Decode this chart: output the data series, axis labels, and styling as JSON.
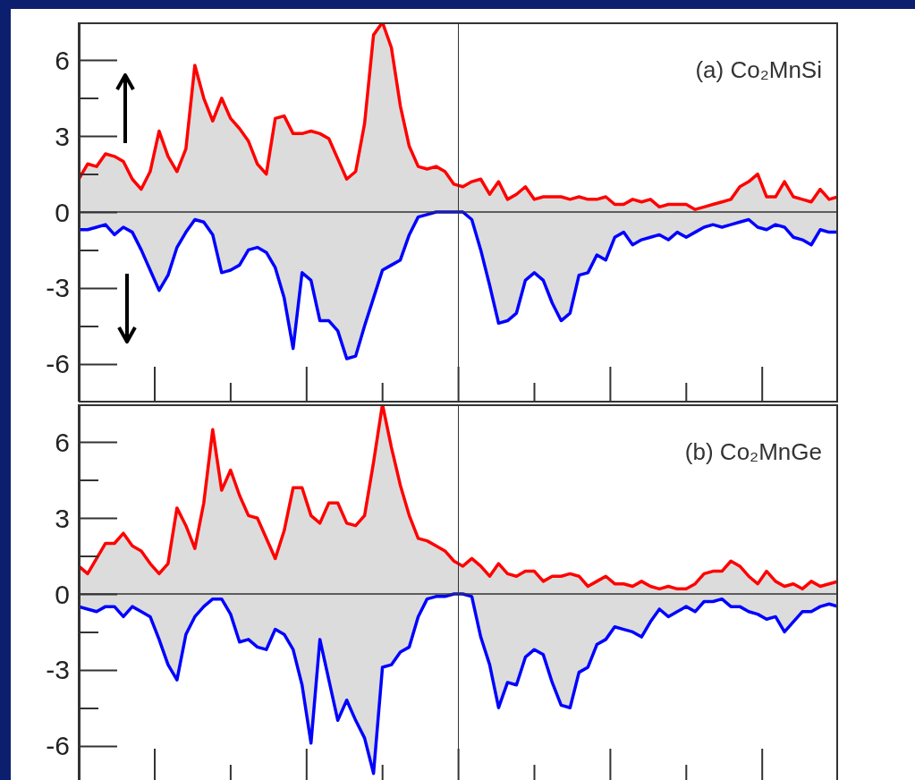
{
  "chart_data": [
    {
      "type": "area",
      "title": "(a) Co₂MnSi",
      "tick_labels": "y",
      "grid": false,
      "categories": [
        null,
        null,
        null,
        null,
        null,
        null,
        null,
        null,
        null,
        null,
        null,
        null,
        null,
        null,
        null,
        null,
        null,
        null,
        null,
        null,
        null,
        null,
        null,
        null,
        null,
        null,
        null,
        null,
        null,
        null,
        null,
        null,
        null,
        null,
        null,
        null,
        null,
        null,
        null,
        null,
        null,
        null,
        null,
        null,
        null,
        null,
        null,
        null,
        null,
        null,
        null,
        null,
        null,
        null,
        null,
        null,
        null,
        null,
        null,
        null,
        null,
        null,
        null,
        null,
        null,
        null,
        null,
        null,
        null,
        null,
        null,
        null,
        null,
        null,
        null,
        null,
        null,
        null,
        null,
        null,
        null,
        null,
        null,
        null,
        null,
        null
      ],
      "series": [
        {
          "color": "#ff0000",
          "values": [
            1.3,
            1.9,
            1.8,
            2.3,
            2.2,
            2.0,
            1.3,
            0.9,
            1.6,
            3.2,
            2.2,
            1.6,
            2.5,
            5.8,
            4.5,
            3.6,
            4.5,
            3.7,
            3.3,
            2.8,
            1.9,
            1.5,
            3.7,
            3.8,
            3.1,
            3.1,
            3.2,
            3.1,
            2.9,
            2.1,
            1.3,
            1.6,
            3.5,
            7.0,
            7.5,
            6.5,
            4.2,
            2.6,
            1.8,
            1.7,
            1.8,
            1.6,
            1.1,
            1.0,
            1.2,
            1.3,
            0.7,
            1.2,
            0.5,
            0.7,
            1.0,
            0.5,
            0.6,
            0.6,
            0.6,
            0.5,
            0.6,
            0.5,
            0.5,
            0.6,
            0.3,
            0.3,
            0.5,
            0.4,
            0.5,
            0.2,
            0.3,
            0.3,
            0.3,
            0.1,
            0.2,
            0.3,
            0.4,
            0.5,
            1.0,
            1.2,
            1.5,
            0.6,
            0.6,
            1.2,
            0.6,
            0.5,
            0.4,
            0.9,
            0.5,
            0.6
          ]
        },
        {
          "color": "#0000ff",
          "values": [
            -0.7,
            -0.7,
            -0.6,
            -0.5,
            -0.9,
            -0.6,
            -0.8,
            -1.5,
            -2.3,
            -3.1,
            -2.5,
            -1.4,
            -0.8,
            -0.3,
            -0.4,
            -0.9,
            -2.4,
            -2.3,
            -2.1,
            -1.5,
            -1.4,
            -1.6,
            -2.2,
            -3.4,
            -5.4,
            -2.4,
            -2.7,
            -4.3,
            -4.3,
            -4.7,
            -5.8,
            -5.7,
            -4.5,
            -3.4,
            -2.3,
            -2.1,
            -1.9,
            -0.9,
            -0.2,
            -0.1,
            0,
            0,
            0,
            0,
            -0.3,
            -1.5,
            -2.9,
            -4.4,
            -4.3,
            -4.0,
            -2.7,
            -2.4,
            -2.7,
            -3.6,
            -4.3,
            -4.0,
            -2.5,
            -2.4,
            -1.7,
            -1.9,
            -1.0,
            -0.8,
            -1.3,
            -1.1,
            -1.0,
            -0.9,
            -1.1,
            -0.8,
            -1.0,
            -0.8,
            -0.6,
            -0.5,
            -0.6,
            -0.5,
            -0.4,
            -0.3,
            -0.6,
            -0.7,
            -0.5,
            -0.6,
            -1.0,
            -1.1,
            -1.3,
            -0.7,
            -0.8,
            -0.8
          ]
        }
      ],
      "ylim": [
        -7.5,
        7.5
      ],
      "yticks": [
        -6,
        -3,
        0,
        3,
        6
      ],
      "ref_lines": [
        {
          "axis": "y",
          "value": 0
        }
      ]
    },
    {
      "type": "area",
      "title": "(b) Co₂MnGe",
      "tick_labels": "y",
      "grid": false,
      "categories": [
        null,
        null,
        null,
        null,
        null,
        null,
        null,
        null,
        null,
        null,
        null,
        null,
        null,
        null,
        null,
        null,
        null,
        null,
        null,
        null,
        null,
        null,
        null,
        null,
        null,
        null,
        null,
        null,
        null,
        null,
        null,
        null,
        null,
        null,
        null,
        null,
        null,
        null,
        null,
        null,
        null,
        null,
        null,
        null,
        null,
        null,
        null,
        null,
        null,
        null,
        null,
        null,
        null,
        null,
        null,
        null,
        null,
        null,
        null,
        null,
        null,
        null,
        null,
        null,
        null,
        null,
        null,
        null,
        null,
        null,
        null,
        null,
        null,
        null,
        null,
        null,
        null,
        null,
        null,
        null,
        null,
        null,
        null,
        null,
        null,
        null
      ],
      "series": [
        {
          "color": "#ff0000",
          "values": [
            1.1,
            0.8,
            1.4,
            2.0,
            2.0,
            2.4,
            1.9,
            1.7,
            1.2,
            0.8,
            1.2,
            3.4,
            2.7,
            1.8,
            3.6,
            6.5,
            4.1,
            4.9,
            3.9,
            3.1,
            3.0,
            2.2,
            1.4,
            2.5,
            4.2,
            4.2,
            3.1,
            2.8,
            3.6,
            3.6,
            2.8,
            2.7,
            3.1,
            5.2,
            7.5,
            5.8,
            4.3,
            3.1,
            2.2,
            2.1,
            1.9,
            1.7,
            1.3,
            1.1,
            1.4,
            1.1,
            0.7,
            1.2,
            0.8,
            0.7,
            0.9,
            0.9,
            0.5,
            0.7,
            0.7,
            0.8,
            0.7,
            0.3,
            0.5,
            0.7,
            0.4,
            0.4,
            0.3,
            0.5,
            0.3,
            0.2,
            0.3,
            0.2,
            0.2,
            0.4,
            0.8,
            0.9,
            0.9,
            1.3,
            1.1,
            0.7,
            0.4,
            0.9,
            0.5,
            0.3,
            0.4,
            0.2,
            0.5,
            0.3,
            0.4,
            0.5
          ]
        },
        {
          "color": "#0000ff",
          "values": [
            -0.5,
            -0.6,
            -0.7,
            -0.5,
            -0.5,
            -0.9,
            -0.5,
            -0.7,
            -0.9,
            -1.8,
            -2.8,
            -3.4,
            -1.6,
            -0.9,
            -0.5,
            -0.2,
            -0.2,
            -0.8,
            -1.9,
            -1.8,
            -2.1,
            -2.2,
            -1.4,
            -1.6,
            -2.2,
            -3.6,
            -5.9,
            -1.8,
            -3.4,
            -5.0,
            -4.2,
            -5.0,
            -5.7,
            -7.1,
            -2.9,
            -2.8,
            -2.3,
            -2.1,
            -0.9,
            -0.2,
            -0.1,
            -0.1,
            0,
            0,
            -0.1,
            -1.7,
            -2.8,
            -4.5,
            -3.5,
            -3.6,
            -2.5,
            -2.2,
            -2.4,
            -3.5,
            -4.4,
            -4.5,
            -3.1,
            -2.9,
            -2.0,
            -1.8,
            -1.3,
            -1.4,
            -1.5,
            -1.7,
            -1.1,
            -0.6,
            -0.9,
            -0.7,
            -0.5,
            -0.7,
            -0.3,
            -0.3,
            -0.2,
            -0.5,
            -0.5,
            -0.7,
            -0.8,
            -1.0,
            -0.9,
            -1.5,
            -1.1,
            -0.7,
            -0.7,
            -0.5,
            -0.4,
            -0.5
          ]
        }
      ],
      "ylim": [
        -7.5,
        7.5
      ],
      "yticks": [
        -6,
        -3,
        0,
        3,
        6
      ],
      "ref_lines": [
        {
          "axis": "y",
          "value": 0
        }
      ]
    }
  ]
}
